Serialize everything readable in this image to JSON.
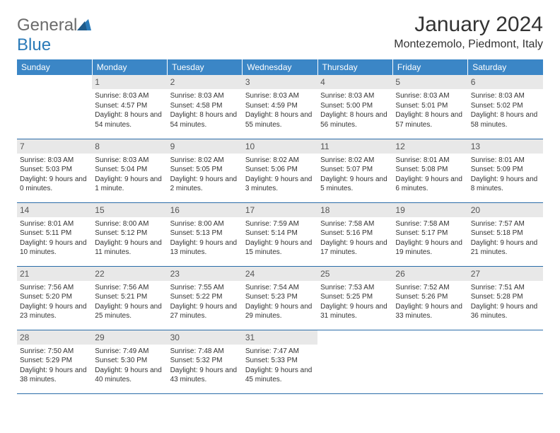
{
  "brand": {
    "part1": "General",
    "part2": "Blue"
  },
  "title": "January 2024",
  "location": "Montezemolo, Piedmont, Italy",
  "colors": {
    "header_bg": "#3b86c6",
    "header_text": "#ffffff",
    "daynum_bg": "#e8e8e8",
    "border": "#2a6ca8",
    "logo_gray": "#6b6b6b",
    "logo_blue": "#2a7ab8"
  },
  "day_headers": [
    "Sunday",
    "Monday",
    "Tuesday",
    "Wednesday",
    "Thursday",
    "Friday",
    "Saturday"
  ],
  "weeks": [
    [
      {
        "n": "",
        "empty": true
      },
      {
        "n": "1",
        "sr": "8:03 AM",
        "ss": "4:57 PM",
        "dl": "8 hours and 54 minutes."
      },
      {
        "n": "2",
        "sr": "8:03 AM",
        "ss": "4:58 PM",
        "dl": "8 hours and 54 minutes."
      },
      {
        "n": "3",
        "sr": "8:03 AM",
        "ss": "4:59 PM",
        "dl": "8 hours and 55 minutes."
      },
      {
        "n": "4",
        "sr": "8:03 AM",
        "ss": "5:00 PM",
        "dl": "8 hours and 56 minutes."
      },
      {
        "n": "5",
        "sr": "8:03 AM",
        "ss": "5:01 PM",
        "dl": "8 hours and 57 minutes."
      },
      {
        "n": "6",
        "sr": "8:03 AM",
        "ss": "5:02 PM",
        "dl": "8 hours and 58 minutes."
      }
    ],
    [
      {
        "n": "7",
        "sr": "8:03 AM",
        "ss": "5:03 PM",
        "dl": "9 hours and 0 minutes."
      },
      {
        "n": "8",
        "sr": "8:03 AM",
        "ss": "5:04 PM",
        "dl": "9 hours and 1 minute."
      },
      {
        "n": "9",
        "sr": "8:02 AM",
        "ss": "5:05 PM",
        "dl": "9 hours and 2 minutes."
      },
      {
        "n": "10",
        "sr": "8:02 AM",
        "ss": "5:06 PM",
        "dl": "9 hours and 3 minutes."
      },
      {
        "n": "11",
        "sr": "8:02 AM",
        "ss": "5:07 PM",
        "dl": "9 hours and 5 minutes."
      },
      {
        "n": "12",
        "sr": "8:01 AM",
        "ss": "5:08 PM",
        "dl": "9 hours and 6 minutes."
      },
      {
        "n": "13",
        "sr": "8:01 AM",
        "ss": "5:09 PM",
        "dl": "9 hours and 8 minutes."
      }
    ],
    [
      {
        "n": "14",
        "sr": "8:01 AM",
        "ss": "5:11 PM",
        "dl": "9 hours and 10 minutes."
      },
      {
        "n": "15",
        "sr": "8:00 AM",
        "ss": "5:12 PM",
        "dl": "9 hours and 11 minutes."
      },
      {
        "n": "16",
        "sr": "8:00 AM",
        "ss": "5:13 PM",
        "dl": "9 hours and 13 minutes."
      },
      {
        "n": "17",
        "sr": "7:59 AM",
        "ss": "5:14 PM",
        "dl": "9 hours and 15 minutes."
      },
      {
        "n": "18",
        "sr": "7:58 AM",
        "ss": "5:16 PM",
        "dl": "9 hours and 17 minutes."
      },
      {
        "n": "19",
        "sr": "7:58 AM",
        "ss": "5:17 PM",
        "dl": "9 hours and 19 minutes."
      },
      {
        "n": "20",
        "sr": "7:57 AM",
        "ss": "5:18 PM",
        "dl": "9 hours and 21 minutes."
      }
    ],
    [
      {
        "n": "21",
        "sr": "7:56 AM",
        "ss": "5:20 PM",
        "dl": "9 hours and 23 minutes."
      },
      {
        "n": "22",
        "sr": "7:56 AM",
        "ss": "5:21 PM",
        "dl": "9 hours and 25 minutes."
      },
      {
        "n": "23",
        "sr": "7:55 AM",
        "ss": "5:22 PM",
        "dl": "9 hours and 27 minutes."
      },
      {
        "n": "24",
        "sr": "7:54 AM",
        "ss": "5:23 PM",
        "dl": "9 hours and 29 minutes."
      },
      {
        "n": "25",
        "sr": "7:53 AM",
        "ss": "5:25 PM",
        "dl": "9 hours and 31 minutes."
      },
      {
        "n": "26",
        "sr": "7:52 AM",
        "ss": "5:26 PM",
        "dl": "9 hours and 33 minutes."
      },
      {
        "n": "27",
        "sr": "7:51 AM",
        "ss": "5:28 PM",
        "dl": "9 hours and 36 minutes."
      }
    ],
    [
      {
        "n": "28",
        "sr": "7:50 AM",
        "ss": "5:29 PM",
        "dl": "9 hours and 38 minutes."
      },
      {
        "n": "29",
        "sr": "7:49 AM",
        "ss": "5:30 PM",
        "dl": "9 hours and 40 minutes."
      },
      {
        "n": "30",
        "sr": "7:48 AM",
        "ss": "5:32 PM",
        "dl": "9 hours and 43 minutes."
      },
      {
        "n": "31",
        "sr": "7:47 AM",
        "ss": "5:33 PM",
        "dl": "9 hours and 45 minutes."
      },
      {
        "n": "",
        "empty": true
      },
      {
        "n": "",
        "empty": true
      },
      {
        "n": "",
        "empty": true
      }
    ]
  ],
  "labels": {
    "sunrise": "Sunrise: ",
    "sunset": "Sunset: ",
    "daylight": "Daylight: "
  }
}
